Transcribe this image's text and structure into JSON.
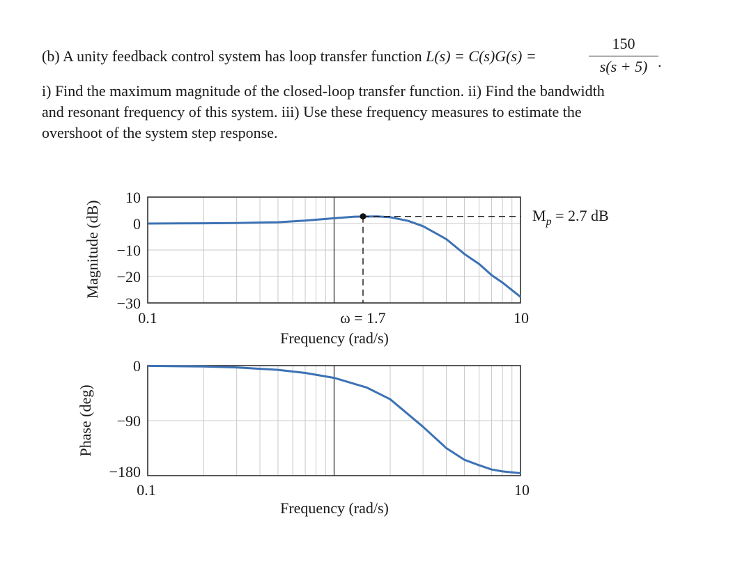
{
  "problem": {
    "line1_prefix": "(b) A unity feedback control system has loop transfer function ",
    "line1_func": "L(s) = C(s)G(s) =",
    "numerator": "150",
    "denominator": "s(s + 5)",
    "terminator": ".",
    "line2": "i) Find the maximum magnitude of the closed-loop transfer function.  ii) Find the bandwidth",
    "line3": "and resonant frequency of this system. iii) Use these frequency measures to estimate the",
    "line4": "overshoot of the system step response."
  },
  "chart_data": [
    {
      "type": "line",
      "ylabel": "Magnitude (dB)",
      "xlabel": "Frequency (rad/s)",
      "x_scale": "log",
      "xlim": [
        0.1,
        10
      ],
      "ylim": [
        -30,
        10
      ],
      "x_tick_labels": [
        "0.1",
        "10"
      ],
      "y_ticks": [
        10,
        0,
        -10,
        -20,
        -30
      ],
      "y_tick_labels": [
        "10",
        "0",
        "−10",
        "−20",
        "−30"
      ],
      "grid": true,
      "series": [
        {
          "x": [
            0.1,
            0.2,
            0.3,
            0.5,
            0.7,
            1.0,
            1.3,
            1.7,
            2.0,
            2.5,
            3.0,
            4.0,
            5.0,
            6.0,
            7.0,
            8.0,
            10.0
          ],
          "y": [
            0.0,
            0.1,
            0.2,
            0.5,
            1.1,
            2.0,
            2.6,
            2.7,
            2.4,
            1.0,
            -1.0,
            -5.9,
            -11.5,
            -15.3,
            -19.5,
            -22.3,
            -27.7
          ]
        }
      ],
      "annotations": {
        "peak_label": "M",
        "peak_sub": "p",
        "peak_rest": " = 2.7 dB",
        "peak_x": 1.7,
        "peak_y": 2.7,
        "omega_label": "ω = 1.7"
      }
    },
    {
      "type": "line",
      "ylabel": "Phase (deg)",
      "xlabel": "Frequency (rad/s)",
      "x_scale": "log",
      "xlim": [
        0.1,
        10
      ],
      "ylim": [
        -180,
        0
      ],
      "x_tick_labels": [
        "0.1",
        "10"
      ],
      "y_ticks": [
        0,
        -90,
        -180
      ],
      "y_tick_labels": [
        "0",
        "−90",
        "−180"
      ],
      "grid": true,
      "series": [
        {
          "x": [
            0.1,
            0.2,
            0.3,
            0.5,
            0.7,
            1.0,
            1.5,
            2.0,
            3.0,
            4.0,
            5.0,
            6.0,
            7.0,
            8.0,
            10.0
          ],
          "y": [
            -0.5,
            -1.5,
            -3,
            -7,
            -12,
            -20,
            -36,
            -55,
            -100,
            -135,
            -154,
            -163,
            -170,
            -173,
            -176
          ]
        }
      ]
    }
  ],
  "colors": {
    "curve": "#3d72b4",
    "grid": "#c9c9c9",
    "frame": "#222222"
  }
}
